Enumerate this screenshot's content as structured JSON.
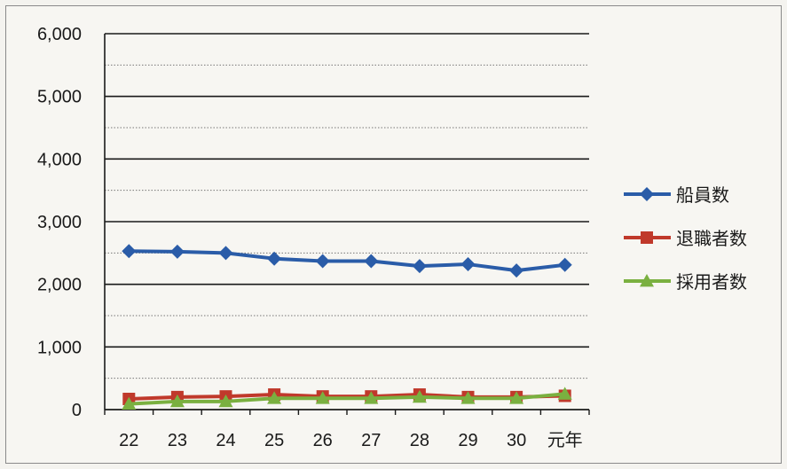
{
  "chart_data": {
    "type": "line",
    "categories": [
      "22",
      "23",
      "24",
      "25",
      "26",
      "27",
      "28",
      "29",
      "30",
      "元年"
    ],
    "ylim": [
      0,
      6000
    ],
    "yticks": [
      "6,000",
      "5,000",
      "4,000",
      "3,000",
      "2,000",
      "1,000",
      "0"
    ],
    "ytick_values": [
      6000,
      5000,
      4000,
      3000,
      2000,
      1000,
      0
    ],
    "grid": true,
    "legend_position": "right",
    "series": [
      {
        "name": "船員数",
        "color": "#2a5ca8",
        "marker": "diamond",
        "values": [
          2530,
          2520,
          2500,
          2410,
          2370,
          2370,
          2290,
          2320,
          2220,
          2310
        ]
      },
      {
        "name": "退職者数",
        "color": "#c0392b",
        "marker": "square",
        "values": [
          170,
          200,
          210,
          240,
          210,
          210,
          240,
          200,
          200,
          220
        ]
      },
      {
        "name": "採用者数",
        "color": "#7ab040",
        "marker": "triangle",
        "values": [
          90,
          130,
          130,
          180,
          180,
          180,
          200,
          180,
          180,
          250
        ]
      }
    ]
  }
}
